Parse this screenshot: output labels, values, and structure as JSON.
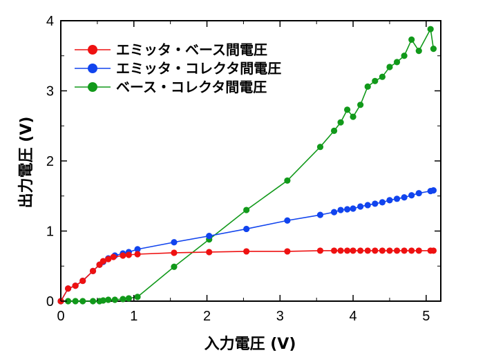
{
  "chart_data": {
    "type": "line",
    "xlabel": "入力電圧 (V)",
    "ylabel": "出力電圧 (V)",
    "xlim": [
      0,
      5.2
    ],
    "ylim": [
      0,
      4
    ],
    "xticks": [
      "0",
      "1",
      "2",
      "3",
      "4",
      "5"
    ],
    "yticks": [
      "0",
      "1",
      "2",
      "3",
      "4"
    ],
    "grid": false,
    "legend_position": "top-left",
    "series": [
      {
        "name": "エミッタ・ベース間電圧",
        "color": "#ee1111",
        "x": [
          0,
          0.1,
          0.2,
          0.3,
          0.44,
          0.53,
          0.58,
          0.65,
          0.72,
          0.85,
          0.93,
          1.05,
          1.55,
          2.03,
          2.54,
          3.1,
          3.55,
          3.74,
          3.83,
          3.92,
          4.0,
          4.1,
          4.2,
          4.3,
          4.4,
          4.5,
          4.6,
          4.7,
          4.8,
          4.9,
          5.06,
          5.1
        ],
        "y": [
          0,
          0.18,
          0.22,
          0.29,
          0.43,
          0.52,
          0.57,
          0.6,
          0.63,
          0.65,
          0.66,
          0.67,
          0.69,
          0.7,
          0.71,
          0.71,
          0.72,
          0.72,
          0.72,
          0.72,
          0.72,
          0.72,
          0.72,
          0.72,
          0.72,
          0.72,
          0.72,
          0.72,
          0.72,
          0.72,
          0.72,
          0.72
        ]
      },
      {
        "name": "エミッタ・コレクタ間電圧",
        "color": "#1144ee",
        "x": [
          0,
          0.1,
          0.2,
          0.3,
          0.44,
          0.53,
          0.58,
          0.65,
          0.74,
          0.85,
          0.93,
          1.05,
          1.55,
          2.03,
          2.54,
          3.1,
          3.55,
          3.74,
          3.83,
          3.92,
          4.0,
          4.1,
          4.2,
          4.3,
          4.4,
          4.5,
          4.6,
          4.7,
          4.8,
          4.9,
          5.06,
          5.1
        ],
        "y": [
          0,
          0.18,
          0.22,
          0.29,
          0.43,
          0.52,
          0.56,
          0.61,
          0.65,
          0.68,
          0.7,
          0.74,
          0.84,
          0.93,
          1.03,
          1.15,
          1.23,
          1.27,
          1.3,
          1.31,
          1.32,
          1.35,
          1.37,
          1.39,
          1.41,
          1.44,
          1.46,
          1.48,
          1.51,
          1.54,
          1.57,
          1.58
        ]
      },
      {
        "name": "ベース・コレクタ間電圧",
        "color": "#11991a",
        "x": [
          0,
          0.1,
          0.2,
          0.3,
          0.44,
          0.53,
          0.58,
          0.65,
          0.74,
          0.85,
          0.93,
          1.05,
          1.55,
          2.03,
          2.54,
          3.1,
          3.55,
          3.74,
          3.83,
          3.92,
          4.0,
          4.1,
          4.2,
          4.3,
          4.4,
          4.5,
          4.6,
          4.7,
          4.8,
          4.9,
          5.06,
          5.1
        ],
        "y": [
          0,
          0,
          0,
          0,
          0,
          0,
          0.01,
          0.02,
          0.02,
          0.03,
          0.04,
          0.06,
          0.49,
          0.88,
          1.3,
          1.72,
          2.2,
          2.43,
          2.55,
          2.73,
          2.63,
          2.8,
          3.06,
          3.14,
          3.2,
          3.34,
          3.41,
          3.5,
          3.73,
          3.57,
          3.88,
          3.6
        ]
      }
    ]
  }
}
